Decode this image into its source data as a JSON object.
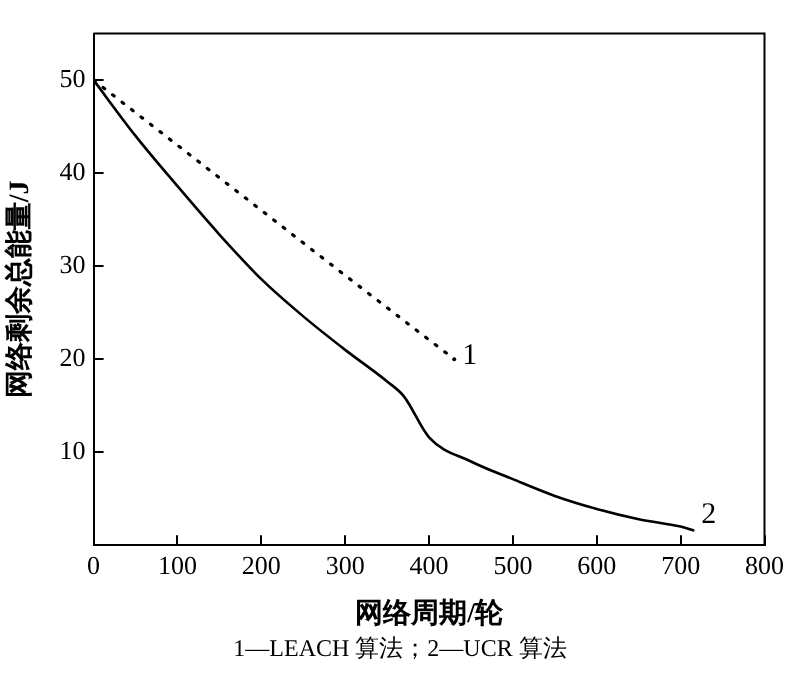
{
  "chart_data": {
    "type": "line",
    "xlabel": "网络周期/轮",
    "ylabel": "网络剩余总能量/J",
    "annotations": [
      "1—LEACH 算法；2—UCR 算法"
    ],
    "xlim": [
      0,
      800
    ],
    "xticks": [
      0,
      100,
      200,
      300,
      400,
      500,
      600,
      700,
      800
    ],
    "ylim": [
      0,
      55
    ],
    "yticks": [
      10,
      20,
      30,
      40,
      50
    ],
    "grid": false,
    "legend": false,
    "marker": "none",
    "series": [
      {
        "name": "1",
        "color": "#000000",
        "line_style": "dotted",
        "x": [
          0,
          100,
          200,
          300,
          430
        ],
        "values": [
          50,
          43,
          36,
          29,
          20
        ]
      },
      {
        "name": "2",
        "color": "#000000",
        "line_style": "solid",
        "x": [
          0,
          50,
          100,
          150,
          200,
          250,
          300,
          350,
          370,
          400,
          450,
          500,
          550,
          600,
          650,
          700,
          715
        ],
        "values": [
          50,
          44,
          38.6,
          33.4,
          28.6,
          24.6,
          21,
          17.6,
          16,
          11.6,
          9,
          7.1,
          5.3,
          3.9,
          2.8,
          2,
          1.6
        ]
      }
    ]
  }
}
